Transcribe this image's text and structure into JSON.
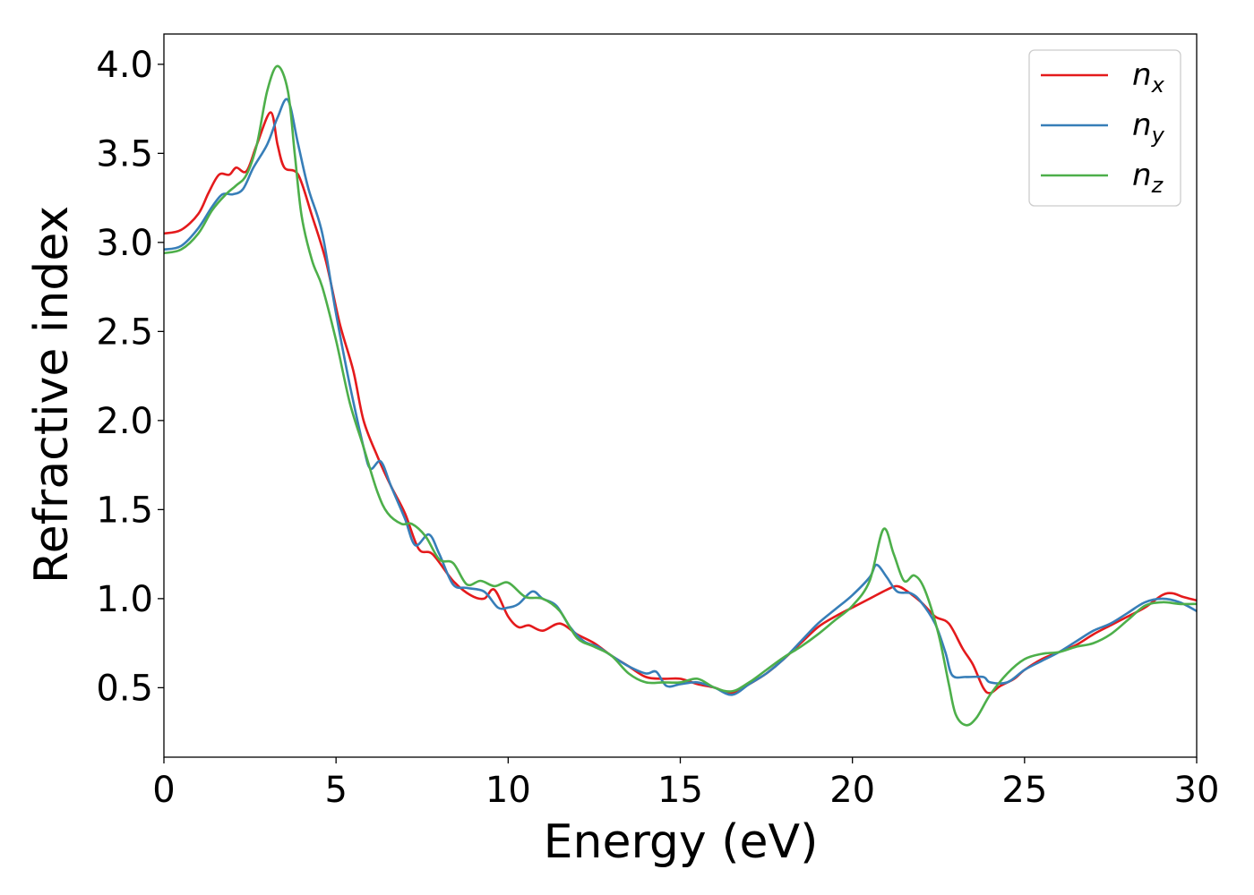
{
  "chart_data": {
    "type": "line",
    "title": "",
    "xlabel": "Energy (eV)",
    "ylabel": "Refractive index",
    "xlim": [
      0,
      30
    ],
    "ylim": [
      0.11,
      4.17
    ],
    "xticks": [
      0,
      5,
      10,
      15,
      20,
      25,
      30
    ],
    "xtick_labels": [
      "0",
      "5",
      "10",
      "15",
      "20",
      "25",
      "30"
    ],
    "yticks": [
      0.5,
      1.0,
      1.5,
      2.0,
      2.5,
      3.0,
      3.5,
      4.0
    ],
    "ytick_labels": [
      "0.5",
      "1.0",
      "1.5",
      "2.0",
      "2.5",
      "3.0",
      "3.5",
      "4.0"
    ],
    "grid": false,
    "legend_position": "top-right",
    "series": [
      {
        "name": "n",
        "subscript": "x",
        "color": "#e41a1c",
        "points": [
          [
            0,
            3.05
          ],
          [
            0.5,
            3.07
          ],
          [
            1.0,
            3.16
          ],
          [
            1.3,
            3.28
          ],
          [
            1.6,
            3.38
          ],
          [
            1.9,
            3.38
          ],
          [
            2.1,
            3.42
          ],
          [
            2.4,
            3.4
          ],
          [
            2.7,
            3.55
          ],
          [
            3.1,
            3.73
          ],
          [
            3.3,
            3.55
          ],
          [
            3.5,
            3.42
          ],
          [
            3.9,
            3.38
          ],
          [
            4.3,
            3.15
          ],
          [
            4.7,
            2.9
          ],
          [
            5.1,
            2.55
          ],
          [
            5.5,
            2.28
          ],
          [
            5.8,
            2.0
          ],
          [
            6.2,
            1.8
          ],
          [
            6.6,
            1.63
          ],
          [
            7.0,
            1.48
          ],
          [
            7.4,
            1.28
          ],
          [
            7.8,
            1.25
          ],
          [
            8.4,
            1.1
          ],
          [
            8.9,
            1.02
          ],
          [
            9.3,
            1.0
          ],
          [
            9.6,
            1.05
          ],
          [
            10.0,
            0.9
          ],
          [
            10.3,
            0.84
          ],
          [
            10.6,
            0.85
          ],
          [
            11.0,
            0.82
          ],
          [
            11.5,
            0.86
          ],
          [
            12.0,
            0.8
          ],
          [
            12.5,
            0.75
          ],
          [
            13.0,
            0.68
          ],
          [
            13.5,
            0.62
          ],
          [
            14.0,
            0.56
          ],
          [
            14.5,
            0.55
          ],
          [
            15.0,
            0.55
          ],
          [
            15.5,
            0.52
          ],
          [
            16.0,
            0.5
          ],
          [
            16.5,
            0.47
          ],
          [
            17.0,
            0.52
          ],
          [
            17.5,
            0.58
          ],
          [
            18.0,
            0.66
          ],
          [
            18.5,
            0.75
          ],
          [
            19.0,
            0.84
          ],
          [
            19.5,
            0.9
          ],
          [
            20.0,
            0.95
          ],
          [
            20.5,
            1.0
          ],
          [
            21.0,
            1.05
          ],
          [
            21.3,
            1.07
          ],
          [
            21.6,
            1.04
          ],
          [
            22.0,
            0.98
          ],
          [
            22.4,
            0.9
          ],
          [
            22.8,
            0.86
          ],
          [
            23.2,
            0.72
          ],
          [
            23.5,
            0.63
          ],
          [
            23.8,
            0.5
          ],
          [
            24.0,
            0.47
          ],
          [
            24.3,
            0.51
          ],
          [
            24.7,
            0.55
          ],
          [
            25.0,
            0.6
          ],
          [
            25.5,
            0.66
          ],
          [
            26.0,
            0.7
          ],
          [
            26.5,
            0.74
          ],
          [
            27.0,
            0.8
          ],
          [
            27.5,
            0.85
          ],
          [
            28.0,
            0.9
          ],
          [
            28.5,
            0.95
          ],
          [
            29.0,
            1.02
          ],
          [
            29.3,
            1.03
          ],
          [
            29.6,
            1.01
          ],
          [
            30.0,
            0.99
          ]
        ]
      },
      {
        "name": "n",
        "subscript": "y",
        "color": "#377eb8",
        "points": [
          [
            0,
            2.96
          ],
          [
            0.5,
            2.98
          ],
          [
            1.0,
            3.08
          ],
          [
            1.4,
            3.2
          ],
          [
            1.7,
            3.27
          ],
          [
            2.0,
            3.27
          ],
          [
            2.3,
            3.3
          ],
          [
            2.6,
            3.42
          ],
          [
            3.0,
            3.55
          ],
          [
            3.3,
            3.7
          ],
          [
            3.6,
            3.8
          ],
          [
            3.9,
            3.55
          ],
          [
            4.2,
            3.3
          ],
          [
            4.6,
            3.05
          ],
          [
            5.0,
            2.6
          ],
          [
            5.4,
            2.2
          ],
          [
            5.8,
            1.85
          ],
          [
            6.0,
            1.73
          ],
          [
            6.3,
            1.77
          ],
          [
            6.6,
            1.63
          ],
          [
            7.0,
            1.45
          ],
          [
            7.3,
            1.3
          ],
          [
            7.7,
            1.36
          ],
          [
            8.0,
            1.25
          ],
          [
            8.4,
            1.08
          ],
          [
            8.8,
            1.06
          ],
          [
            9.3,
            1.04
          ],
          [
            9.7,
            0.95
          ],
          [
            10.0,
            0.95
          ],
          [
            10.3,
            0.97
          ],
          [
            10.7,
            1.04
          ],
          [
            11.0,
            1.0
          ],
          [
            11.4,
            0.96
          ],
          [
            11.8,
            0.84
          ],
          [
            12.2,
            0.76
          ],
          [
            12.6,
            0.73
          ],
          [
            13.0,
            0.68
          ],
          [
            13.5,
            0.62
          ],
          [
            14.0,
            0.58
          ],
          [
            14.3,
            0.59
          ],
          [
            14.6,
            0.51
          ],
          [
            15.0,
            0.52
          ],
          [
            15.5,
            0.53
          ],
          [
            16.0,
            0.5
          ],
          [
            16.5,
            0.46
          ],
          [
            17.0,
            0.52
          ],
          [
            17.5,
            0.58
          ],
          [
            18.0,
            0.66
          ],
          [
            18.5,
            0.76
          ],
          [
            19.0,
            0.86
          ],
          [
            19.5,
            0.94
          ],
          [
            20.0,
            1.02
          ],
          [
            20.5,
            1.12
          ],
          [
            20.7,
            1.19
          ],
          [
            21.0,
            1.12
          ],
          [
            21.3,
            1.04
          ],
          [
            21.7,
            1.03
          ],
          [
            22.0,
            0.98
          ],
          [
            22.4,
            0.86
          ],
          [
            22.7,
            0.7
          ],
          [
            22.9,
            0.57
          ],
          [
            23.3,
            0.56
          ],
          [
            23.8,
            0.56
          ],
          [
            24.0,
            0.53
          ],
          [
            24.5,
            0.53
          ],
          [
            25.0,
            0.6
          ],
          [
            25.5,
            0.65
          ],
          [
            26.0,
            0.7
          ],
          [
            26.5,
            0.76
          ],
          [
            27.0,
            0.82
          ],
          [
            27.5,
            0.86
          ],
          [
            28.0,
            0.92
          ],
          [
            28.5,
            0.98
          ],
          [
            29.0,
            1.0
          ],
          [
            29.5,
            0.98
          ],
          [
            30.0,
            0.93
          ]
        ]
      },
      {
        "name": "n",
        "subscript": "z",
        "color": "#4daf4a",
        "points": [
          [
            0,
            2.94
          ],
          [
            0.5,
            2.96
          ],
          [
            1.0,
            3.05
          ],
          [
            1.4,
            3.18
          ],
          [
            1.8,
            3.27
          ],
          [
            2.1,
            3.32
          ],
          [
            2.4,
            3.38
          ],
          [
            2.7,
            3.55
          ],
          [
            3.0,
            3.85
          ],
          [
            3.3,
            3.99
          ],
          [
            3.6,
            3.85
          ],
          [
            3.8,
            3.5
          ],
          [
            4.0,
            3.15
          ],
          [
            4.3,
            2.9
          ],
          [
            4.6,
            2.75
          ],
          [
            5.0,
            2.45
          ],
          [
            5.4,
            2.1
          ],
          [
            5.8,
            1.85
          ],
          [
            6.2,
            1.6
          ],
          [
            6.5,
            1.48
          ],
          [
            6.9,
            1.42
          ],
          [
            7.2,
            1.42
          ],
          [
            7.6,
            1.35
          ],
          [
            8.0,
            1.22
          ],
          [
            8.4,
            1.2
          ],
          [
            8.8,
            1.08
          ],
          [
            9.2,
            1.1
          ],
          [
            9.6,
            1.07
          ],
          [
            10.0,
            1.09
          ],
          [
            10.5,
            1.01
          ],
          [
            11.0,
            1.0
          ],
          [
            11.5,
            0.93
          ],
          [
            12.0,
            0.78
          ],
          [
            12.5,
            0.73
          ],
          [
            13.0,
            0.68
          ],
          [
            13.5,
            0.58
          ],
          [
            14.0,
            0.53
          ],
          [
            14.5,
            0.53
          ],
          [
            15.0,
            0.53
          ],
          [
            15.5,
            0.55
          ],
          [
            16.0,
            0.5
          ],
          [
            16.5,
            0.48
          ],
          [
            17.0,
            0.53
          ],
          [
            17.5,
            0.6
          ],
          [
            18.0,
            0.67
          ],
          [
            18.5,
            0.73
          ],
          [
            19.0,
            0.8
          ],
          [
            19.5,
            0.88
          ],
          [
            20.0,
            0.96
          ],
          [
            20.5,
            1.1
          ],
          [
            20.9,
            1.39
          ],
          [
            21.2,
            1.25
          ],
          [
            21.5,
            1.1
          ],
          [
            21.8,
            1.13
          ],
          [
            22.1,
            1.05
          ],
          [
            22.5,
            0.8
          ],
          [
            22.8,
            0.52
          ],
          [
            23.0,
            0.35
          ],
          [
            23.3,
            0.29
          ],
          [
            23.6,
            0.33
          ],
          [
            24.0,
            0.46
          ],
          [
            24.5,
            0.58
          ],
          [
            25.0,
            0.66
          ],
          [
            25.5,
            0.69
          ],
          [
            26.0,
            0.7
          ],
          [
            26.5,
            0.73
          ],
          [
            27.0,
            0.75
          ],
          [
            27.5,
            0.8
          ],
          [
            28.0,
            0.88
          ],
          [
            28.5,
            0.96
          ],
          [
            29.0,
            0.98
          ],
          [
            29.5,
            0.97
          ],
          [
            30.0,
            0.97
          ]
        ]
      }
    ]
  }
}
